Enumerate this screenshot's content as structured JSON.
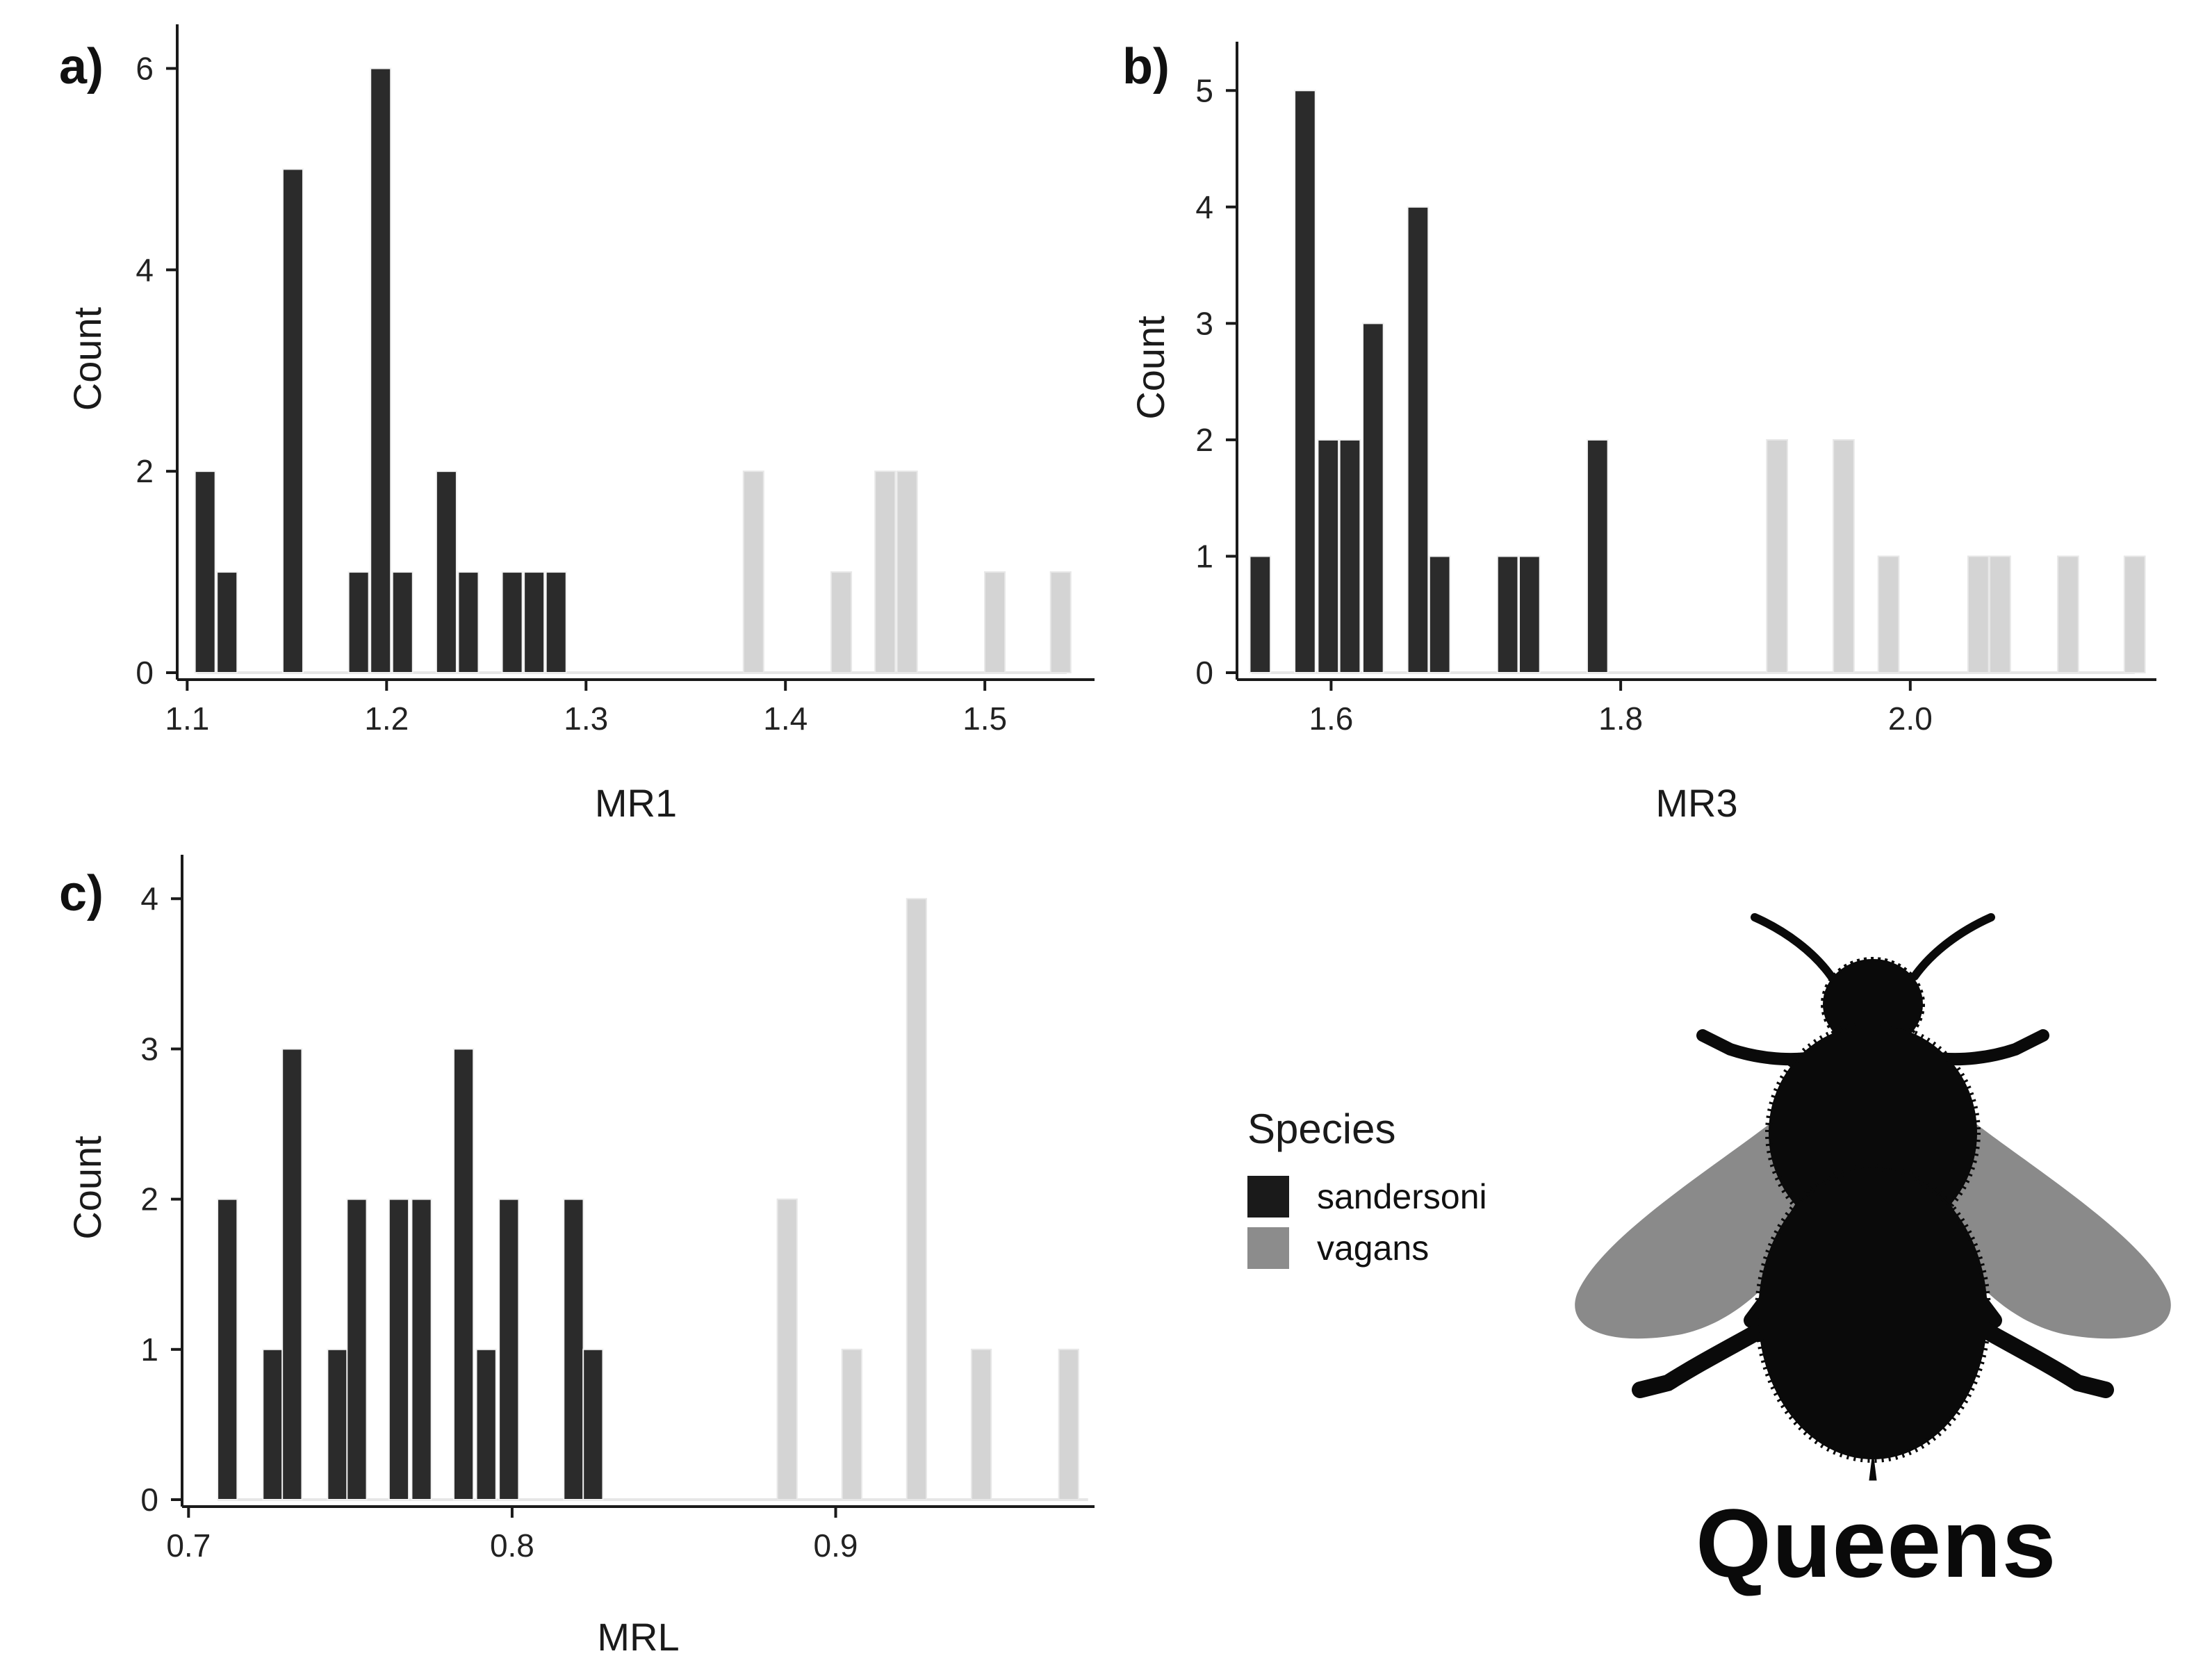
{
  "colors": {
    "sandersoni": "#2b2b2b",
    "vagans": "#d4d4d4",
    "axis": "#1a1a1a",
    "baseline": "#e6e6e6",
    "legend_sandersoni": "#1a1a1a",
    "legend_vagans": "#8c8c8c",
    "bee_body": "#0a0a0a",
    "bee_wing": "#8a8a8a"
  },
  "legend": {
    "title": "Species",
    "items": [
      {
        "label": "sandersoni",
        "color_key": "legend_sandersoni"
      },
      {
        "label": "vagans",
        "color_key": "legend_vagans"
      }
    ]
  },
  "caption": {
    "text": "Queens",
    "icon": "bumblebee-silhouette-icon"
  },
  "chart_data": [
    {
      "type": "bar",
      "panel_label": "a)",
      "title": "",
      "xlabel": "MR1",
      "ylabel": "Count",
      "xlim": [
        1.095,
        1.555
      ],
      "ylim": [
        0,
        6.3
      ],
      "xticks": [
        1.1,
        1.2,
        1.3,
        1.4,
        1.5
      ],
      "xtick_labels": [
        "1.1",
        "1.2",
        "1.3",
        "1.4",
        "1.5"
      ],
      "yticks": [
        0,
        2,
        4,
        6
      ],
      "ytick_labels": [
        "0",
        "2",
        "4",
        "6"
      ],
      "bin_width": 0.011,
      "baseline_range": [
        1.105,
        1.541
      ],
      "series": [
        {
          "name": "sandersoni",
          "x": [
            1.109,
            1.12,
            1.153,
            1.186,
            1.197,
            1.208,
            1.23,
            1.241,
            1.263,
            1.274,
            1.285
          ],
          "values": [
            2,
            1,
            5,
            1,
            6,
            1,
            2,
            1,
            1,
            1,
            1
          ]
        },
        {
          "name": "vagans",
          "x": [
            1.384,
            1.428,
            1.45,
            1.461,
            1.505,
            1.538
          ],
          "values": [
            2,
            1,
            2,
            2,
            1,
            1
          ]
        }
      ]
    },
    {
      "type": "bar",
      "panel_label": "b)",
      "title": "",
      "xlabel": "MR3",
      "ylabel": "Count",
      "xlim": [
        1.535,
        2.17
      ],
      "ylim": [
        0,
        5.3
      ],
      "xticks": [
        1.6,
        1.8,
        2.0
      ],
      "xtick_labels": [
        "1.6",
        "1.8",
        "2.0"
      ],
      "yticks": [
        0,
        1,
        2,
        3,
        4,
        5
      ],
      "ytick_labels": [
        "0",
        "1",
        "2",
        "3",
        "4",
        "5"
      ],
      "bin_width": 0.0155,
      "baseline_range": [
        1.545,
        2.155
      ],
      "series": [
        {
          "name": "sandersoni",
          "x": [
            1.551,
            1.582,
            1.598,
            1.613,
            1.629,
            1.66,
            1.675,
            1.722,
            1.737,
            1.784
          ],
          "values": [
            1,
            5,
            2,
            2,
            3,
            4,
            1,
            1,
            1,
            2
          ]
        },
        {
          "name": "vagans",
          "x": [
            1.908,
            1.954,
            1.985,
            2.047,
            2.062,
            2.109,
            2.155
          ],
          "values": [
            2,
            2,
            1,
            1,
            1,
            1,
            1
          ]
        }
      ]
    },
    {
      "type": "bar",
      "panel_label": "c)",
      "title": "",
      "xlabel": "MRL",
      "ylabel": "Count",
      "xlim": [
        0.698,
        0.98
      ],
      "ylim": [
        0,
        4.2
      ],
      "xticks": [
        0.7,
        0.8,
        0.9
      ],
      "xtick_labels": [
        "0.7",
        "0.8",
        "0.9"
      ],
      "yticks": [
        0,
        1,
        2,
        3,
        4
      ],
      "ytick_labels": [
        "0",
        "1",
        "2",
        "3",
        "4"
      ],
      "bin_width": 0.0066,
      "baseline_range": [
        0.709,
        0.978
      ],
      "series": [
        {
          "name": "sandersoni",
          "x": [
            0.712,
            0.726,
            0.732,
            0.746,
            0.752,
            0.765,
            0.772,
            0.785,
            0.792,
            0.799,
            0.819,
            0.825
          ],
          "values": [
            2,
            1,
            3,
            1,
            2,
            2,
            2,
            3,
            1,
            2,
            2,
            1
          ]
        },
        {
          "name": "vagans",
          "x": [
            0.885,
            0.905,
            0.925,
            0.945,
            0.972
          ],
          "values": [
            2,
            1,
            4,
            1,
            1
          ]
        }
      ]
    }
  ]
}
